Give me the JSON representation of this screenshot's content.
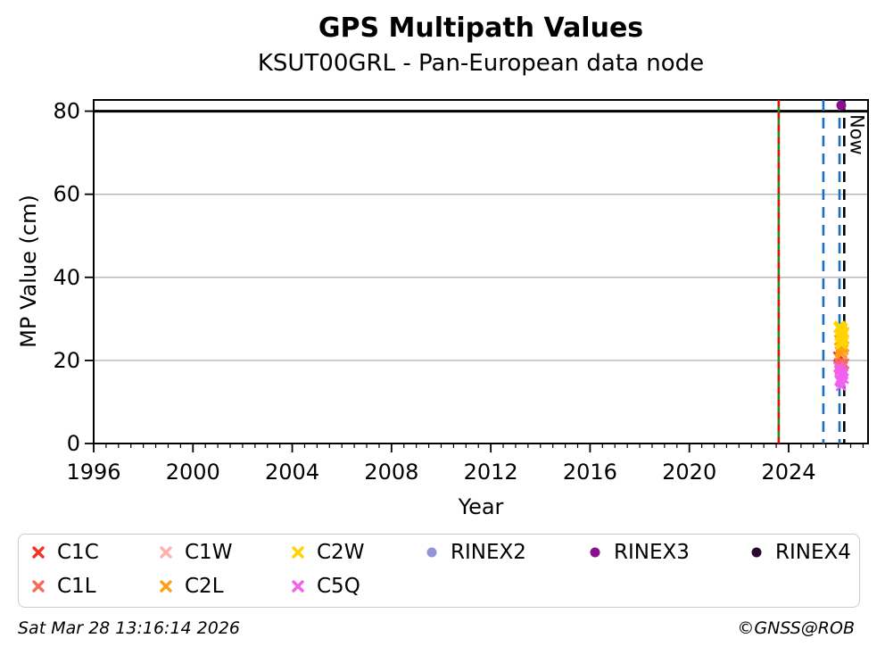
{
  "title": "GPS Multipath Values",
  "subtitle": "KSUT00GRL - Pan-European data node",
  "footer": {
    "timestamp": "Sat Mar 28 13:16:14 2026",
    "copyright": "©GNSS@ROB"
  },
  "legend": {
    "columns": [
      [
        "C1C",
        "C1L"
      ],
      [
        "C1W",
        "C2L"
      ],
      [
        "C2W",
        "C5Q"
      ],
      [
        "RINEX2"
      ],
      [
        "RINEX3"
      ],
      [
        "RINEX4"
      ]
    ]
  },
  "chart_data": {
    "type": "scatter",
    "title": "GPS Multipath Values",
    "subtitle": "KSUT00GRL - Pan-European data node",
    "xlabel": "Year",
    "ylabel": "MP Value (cm)",
    "xlim": [
      1996,
      2027.2
    ],
    "ylim": [
      0,
      82.7
    ],
    "xticks": [
      1996,
      2000,
      2004,
      2008,
      2012,
      2016,
      2020,
      2024
    ],
    "x_minor_step": 0.5,
    "yticks": [
      0,
      20,
      40,
      60,
      80
    ],
    "grid": "horizontal-only",
    "grid_color": "#b3b3b3",
    "threshold_line": {
      "y": 80,
      "color": "#000000"
    },
    "vlines": [
      {
        "x": 2023.6,
        "style": "solid-with-dashed-overlay",
        "color": "#1e8c1e",
        "overlay_color": "#dd1111",
        "label": ""
      },
      {
        "x": 2025.4,
        "style": "dashed",
        "color": "#1b6eb8",
        "label": ""
      },
      {
        "x": 2026.05,
        "style": "dashed",
        "color": "#1b6eb8",
        "label": ""
      },
      {
        "x": 2026.24,
        "style": "dashed",
        "color": "#000000",
        "label": "Now"
      }
    ],
    "series": [
      {
        "name": "C1C",
        "marker": "x",
        "color": "#ee3423",
        "points": [
          [
            2026.0,
            20.9
          ],
          [
            2026.09,
            20.2
          ],
          [
            2026.13,
            19.6
          ],
          [
            2026.17,
            20.5
          ],
          [
            2026.21,
            19.1
          ],
          [
            2026.07,
            18.8
          ],
          [
            2026.15,
            19.9
          ],
          [
            2026.11,
            21.2
          ]
        ]
      },
      {
        "name": "C1L",
        "marker": "x",
        "color": "#fa6a5a",
        "points": [
          [
            2026.04,
            19.4
          ],
          [
            2026.08,
            18.9
          ],
          [
            2026.12,
            18.3
          ],
          [
            2026.16,
            19.7
          ],
          [
            2026.19,
            18.6
          ],
          [
            2026.24,
            19.2
          ],
          [
            2026.06,
            17.9
          ],
          [
            2026.14,
            18.1
          ]
        ]
      },
      {
        "name": "C1W",
        "marker": "x",
        "color": "#ffb1ac",
        "points": [
          [
            2026.07,
            22.1
          ],
          [
            2026.13,
            21.8
          ],
          [
            2026.16,
            22.4
          ],
          [
            2026.1,
            21.6
          ]
        ]
      },
      {
        "name": "C2L",
        "marker": "x",
        "color": "#ffa012",
        "points": [
          [
            2026.04,
            24.9
          ],
          [
            2026.08,
            24.2
          ],
          [
            2026.11,
            23.5
          ],
          [
            2026.14,
            23.0
          ],
          [
            2026.17,
            23.8
          ],
          [
            2026.21,
            22.6
          ],
          [
            2026.24,
            23.3
          ],
          [
            2026.06,
            22.2
          ],
          [
            2026.1,
            21.9
          ],
          [
            2026.15,
            21.7
          ],
          [
            2026.18,
            22.9
          ],
          [
            2026.12,
            24.6
          ]
        ]
      },
      {
        "name": "C2W",
        "marker": "x",
        "color": "#ffd400",
        "points": [
          [
            2026.01,
            27.9
          ],
          [
            2026.06,
            28.3
          ],
          [
            2026.09,
            27.4
          ],
          [
            2026.12,
            28.0
          ],
          [
            2026.15,
            27.0
          ],
          [
            2026.18,
            27.7
          ],
          [
            2026.22,
            26.3
          ],
          [
            2026.05,
            26.0
          ],
          [
            2026.1,
            25.4
          ],
          [
            2026.14,
            25.9
          ],
          [
            2026.17,
            24.8
          ],
          [
            2026.2,
            25.1
          ],
          [
            2026.08,
            24.3
          ],
          [
            2026.13,
            23.9
          ],
          [
            2026.19,
            24.5
          ],
          [
            2026.24,
            26.8
          ]
        ]
      },
      {
        "name": "C5Q",
        "marker": "x",
        "color": "#f160ef",
        "points": [
          [
            2026.01,
            18.4
          ],
          [
            2026.06,
            17.6
          ],
          [
            2026.09,
            16.8
          ],
          [
            2026.12,
            17.9
          ],
          [
            2026.15,
            16.2
          ],
          [
            2026.18,
            17.1
          ],
          [
            2026.22,
            15.6
          ],
          [
            2026.05,
            15.2
          ],
          [
            2026.1,
            14.8
          ],
          [
            2026.13,
            16.5
          ],
          [
            2026.17,
            15.9
          ],
          [
            2026.2,
            16.7
          ],
          [
            2026.08,
            15.4
          ],
          [
            2026.11,
            13.9
          ]
        ]
      },
      {
        "name": "RINEX2",
        "marker": "dot",
        "color": "#9593d6",
        "points": []
      },
      {
        "name": "RINEX3",
        "marker": "dot",
        "color": "#8a0f8a",
        "points": [
          [
            2026.12,
            81.4
          ]
        ]
      },
      {
        "name": "RINEX4",
        "marker": "dot",
        "color": "#2a0a2e",
        "points": []
      }
    ]
  }
}
